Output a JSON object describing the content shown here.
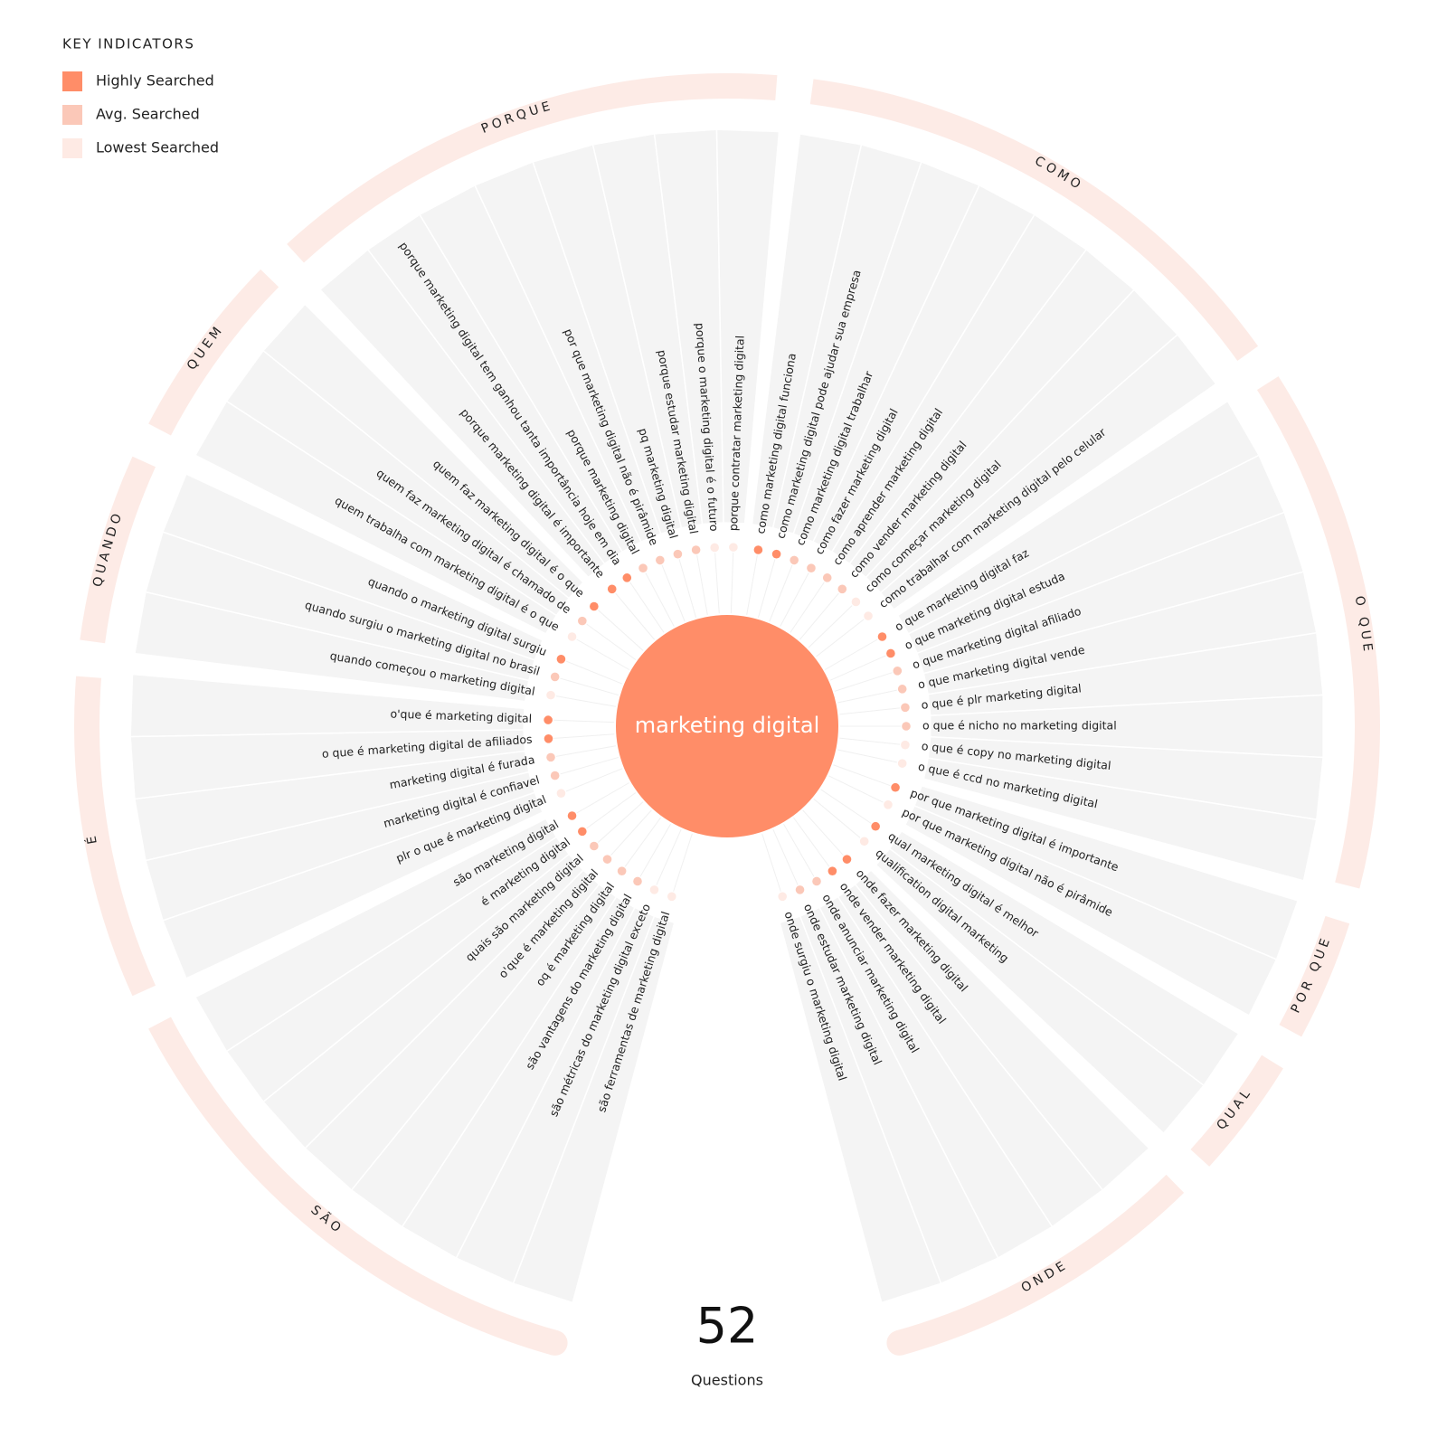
{
  "legend": {
    "title": "KEY INDICATORS",
    "items": [
      {
        "label": "Highly Searched",
        "color": "#ff8d68"
      },
      {
        "label": "Avg. Searched",
        "color": "#fbc8b8"
      },
      {
        "label": "Lowest Searched",
        "color": "#feeae4"
      }
    ]
  },
  "keyword": "marketing digital",
  "groups": [
    {
      "label": "SÃO",
      "questions": [
        {
          "text": "são ferramentas de marketing digital",
          "color": "#feeae4"
        },
        {
          "text": "são métricas do marketing digital exceto",
          "color": "#feeae4"
        },
        {
          "text": "são vantagens do marketing digital",
          "color": "#fbc8b8"
        },
        {
          "text": "oq é marketing digital",
          "color": "#fbc8b8"
        },
        {
          "text": "o'que é marketing digital",
          "color": "#fbc8b8"
        },
        {
          "text": "quais são marketing digital",
          "color": "#fbc8b8"
        },
        {
          "text": "é marketing digital",
          "color": "#ff8d68"
        },
        {
          "text": "são marketing digital",
          "color": "#ff8d68"
        }
      ]
    },
    {
      "label": "É",
      "questions": [
        {
          "text": "plr o que é marketing digital",
          "color": "#feeae4"
        },
        {
          "text": "marketing digital é confiavel",
          "color": "#fbc8b8"
        },
        {
          "text": "marketing digital é furada",
          "color": "#fbc8b8"
        },
        {
          "text": "o que é marketing digital de afiliados",
          "color": "#ff8d68"
        },
        {
          "text": "o'que é marketing digital",
          "color": "#ff8d68"
        }
      ]
    },
    {
      "label": "QUANDO",
      "questions": [
        {
          "text": "quando começou o marketing digital",
          "color": "#feeae4"
        },
        {
          "text": "quando surgiu o marketing digital no brasil",
          "color": "#fbc8b8"
        },
        {
          "text": "quando o marketing digital surgiu",
          "color": "#ff8d68"
        }
      ]
    },
    {
      "label": "QUEM",
      "questions": [
        {
          "text": "quem trabalha com marketing digital é o que",
          "color": "#feeae4"
        },
        {
          "text": "quem faz marketing digital é chamado de",
          "color": "#fbc8b8"
        },
        {
          "text": "quem faz marketing digital é o que",
          "color": "#ff8d68"
        }
      ]
    },
    {
      "label": "PORQUE",
      "questions": [
        {
          "text": "porque marketing digital é importante",
          "color": "#ff8d68"
        },
        {
          "text": "porque marketing digital tem ganhou tanta importância hoje em dia",
          "color": "#ff8d68"
        },
        {
          "text": "porque marketing digital",
          "color": "#fbc8b8"
        },
        {
          "text": "por que marketing digital não é pirâmide",
          "color": "#fbc8b8"
        },
        {
          "text": "pq marketing digital",
          "color": "#fbc8b8"
        },
        {
          "text": "porque estudar marketing digital",
          "color": "#fbc8b8"
        },
        {
          "text": "porque o marketing digital é o futuro",
          "color": "#feeae4"
        },
        {
          "text": "porque contratar marketing digital",
          "color": "#feeae4"
        }
      ]
    },
    {
      "label": "COMO",
      "questions": [
        {
          "text": "como marketing digital funciona",
          "color": "#ff8d68"
        },
        {
          "text": "como marketing digital pode ajudar sua empresa",
          "color": "#ff8d68"
        },
        {
          "text": "como marketing digital trabalhar",
          "color": "#fbc8b8"
        },
        {
          "text": "como fazer marketing digital",
          "color": "#fbc8b8"
        },
        {
          "text": "como aprender marketing digital",
          "color": "#fbc8b8"
        },
        {
          "text": "como vender marketing digital",
          "color": "#fbc8b8"
        },
        {
          "text": "como começar marketing digital",
          "color": "#feeae4"
        },
        {
          "text": "como trabalhar com marketing digital pelo celular",
          "color": "#feeae4"
        }
      ]
    },
    {
      "label": "O QUE",
      "questions": [
        {
          "text": "o que marketing digital faz",
          "color": "#ff8d68"
        },
        {
          "text": "o que marketing digital estuda",
          "color": "#ff8d68"
        },
        {
          "text": "o que marketing digital afiliado",
          "color": "#fbc8b8"
        },
        {
          "text": "o que marketing digital vende",
          "color": "#fbc8b8"
        },
        {
          "text": "o que é plr marketing digital",
          "color": "#fbc8b8"
        },
        {
          "text": "o que é nicho no marketing digital",
          "color": "#fbc8b8"
        },
        {
          "text": "o que é copy no marketing digital",
          "color": "#feeae4"
        },
        {
          "text": "o que é ccd no marketing digital",
          "color": "#feeae4"
        }
      ]
    },
    {
      "label": "POR QUE",
      "questions": [
        {
          "text": "por que marketing digital é importante",
          "color": "#ff8d68"
        },
        {
          "text": "por que marketing digital não é pirâmide",
          "color": "#feeae4"
        }
      ]
    },
    {
      "label": "QUAL",
      "questions": [
        {
          "text": "qual marketing digital é melhor",
          "color": "#ff8d68"
        },
        {
          "text": "qualification digital marketing",
          "color": "#feeae4"
        }
      ]
    },
    {
      "label": "ONDE",
      "questions": [
        {
          "text": "onde fazer marketing digital",
          "color": "#ff8d68"
        },
        {
          "text": "onde vender marketing digital",
          "color": "#ff8d68"
        },
        {
          "text": "onde anunciar marketing digital",
          "color": "#fbc8b8"
        },
        {
          "text": "onde estudar marketing digital",
          "color": "#fbc8b8"
        },
        {
          "text": "onde surgiu o marketing digital",
          "color": "#feeae4"
        }
      ]
    }
  ],
  "total": {
    "value": 52,
    "label": "Questions"
  }
}
